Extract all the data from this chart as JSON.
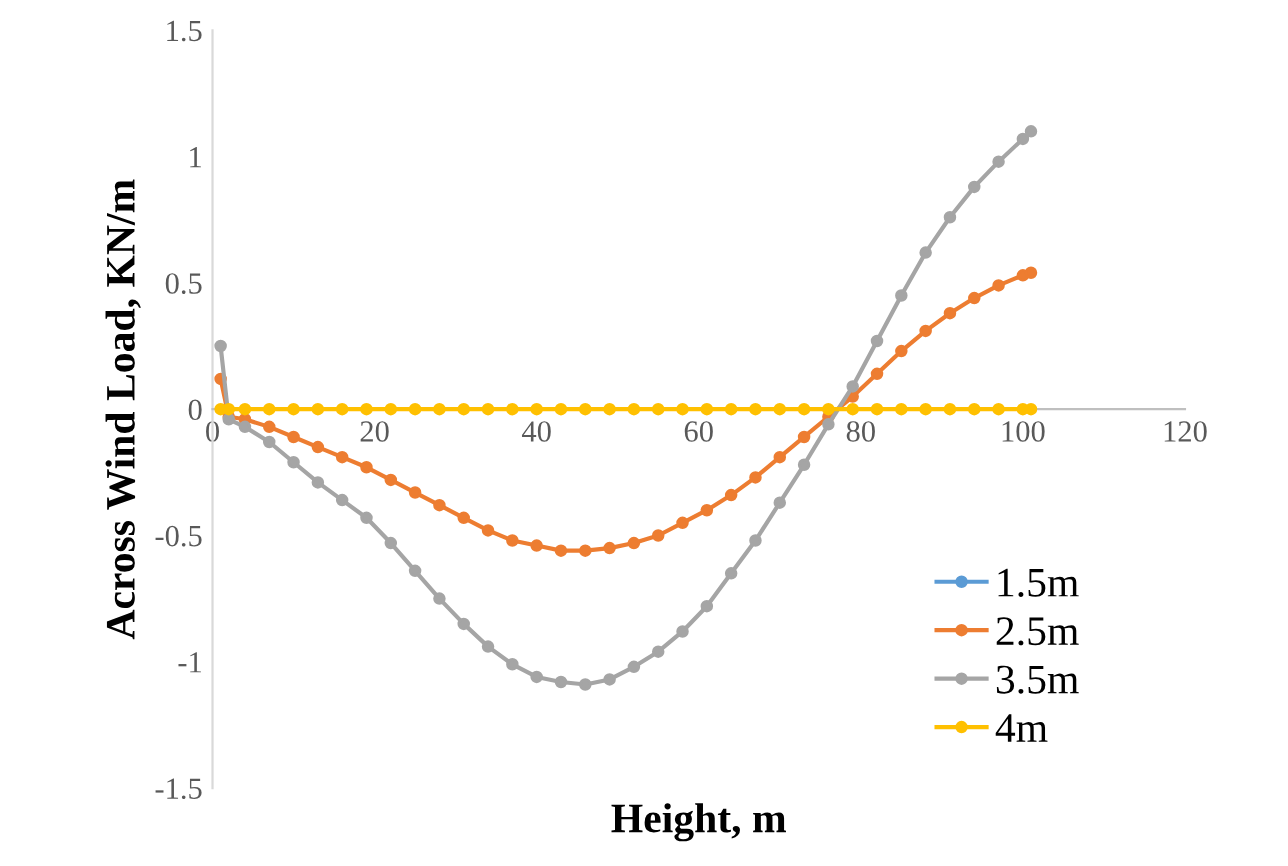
{
  "chart_data": {
    "type": "line",
    "xlabel": "Height, m",
    "ylabel": "Across Wind Load, KN/m",
    "x": [
      1,
      2,
      4,
      7,
      10,
      13,
      16,
      19,
      22,
      25,
      28,
      31,
      34,
      37,
      40,
      43,
      46,
      49,
      52,
      55,
      58,
      61,
      64,
      67,
      70,
      73,
      76,
      79,
      82,
      85,
      88,
      91,
      94,
      97,
      100,
      101
    ],
    "series": [
      {
        "name": "1.5m",
        "color": "#5b9bd5",
        "values": [
          null,
          null,
          null,
          null,
          null,
          null,
          null,
          null,
          null,
          null,
          null,
          null,
          null,
          null,
          null,
          null,
          null,
          null,
          null,
          null,
          null,
          null,
          null,
          null,
          null,
          null,
          null,
          null,
          null,
          null,
          null,
          null,
          null,
          null,
          null,
          null
        ]
      },
      {
        "name": "2.5m",
        "color": "#ed7d31",
        "values": [
          0.12,
          -0.03,
          -0.04,
          -0.07,
          -0.11,
          -0.15,
          -0.19,
          -0.23,
          -0.28,
          -0.33,
          -0.38,
          -0.43,
          -0.48,
          -0.52,
          -0.54,
          -0.56,
          -0.56,
          -0.55,
          -0.53,
          -0.5,
          -0.45,
          -0.4,
          -0.34,
          -0.27,
          -0.19,
          -0.11,
          -0.03,
          0.05,
          0.14,
          0.23,
          0.31,
          0.38,
          0.44,
          0.49,
          0.53,
          0.54
        ]
      },
      {
        "name": "3.5m",
        "color": "#a5a5a5",
        "values": [
          0.25,
          -0.04,
          -0.07,
          -0.13,
          -0.21,
          -0.29,
          -0.36,
          -0.43,
          -0.53,
          -0.64,
          -0.75,
          -0.85,
          -0.94,
          -1.01,
          -1.06,
          -1.08,
          -1.09,
          -1.07,
          -1.02,
          -0.96,
          -0.88,
          -0.78,
          -0.65,
          -0.52,
          -0.37,
          -0.22,
          -0.06,
          0.09,
          0.27,
          0.45,
          0.62,
          0.76,
          0.88,
          0.98,
          1.07,
          1.1
        ]
      },
      {
        "name": "4m",
        "color": "#ffc000",
        "values": [
          0,
          0,
          0,
          0,
          0,
          0,
          0,
          0,
          0,
          0,
          0,
          0,
          0,
          0,
          0,
          0,
          0,
          0,
          0,
          0,
          0,
          0,
          0,
          0,
          0,
          0,
          0,
          0,
          0,
          0,
          0,
          0,
          0,
          0,
          0,
          0
        ]
      }
    ],
    "xlim": [
      0,
      120
    ],
    "xticks": [
      0,
      20,
      40,
      60,
      80,
      100,
      120
    ],
    "ylim": [
      -1.5,
      1.5
    ],
    "yticks": [
      -1.5,
      -1,
      -0.5,
      0,
      0.5,
      1,
      1.5
    ],
    "grid": false,
    "legend": "bottom right",
    "marker": "circle",
    "line_style": "solid"
  }
}
